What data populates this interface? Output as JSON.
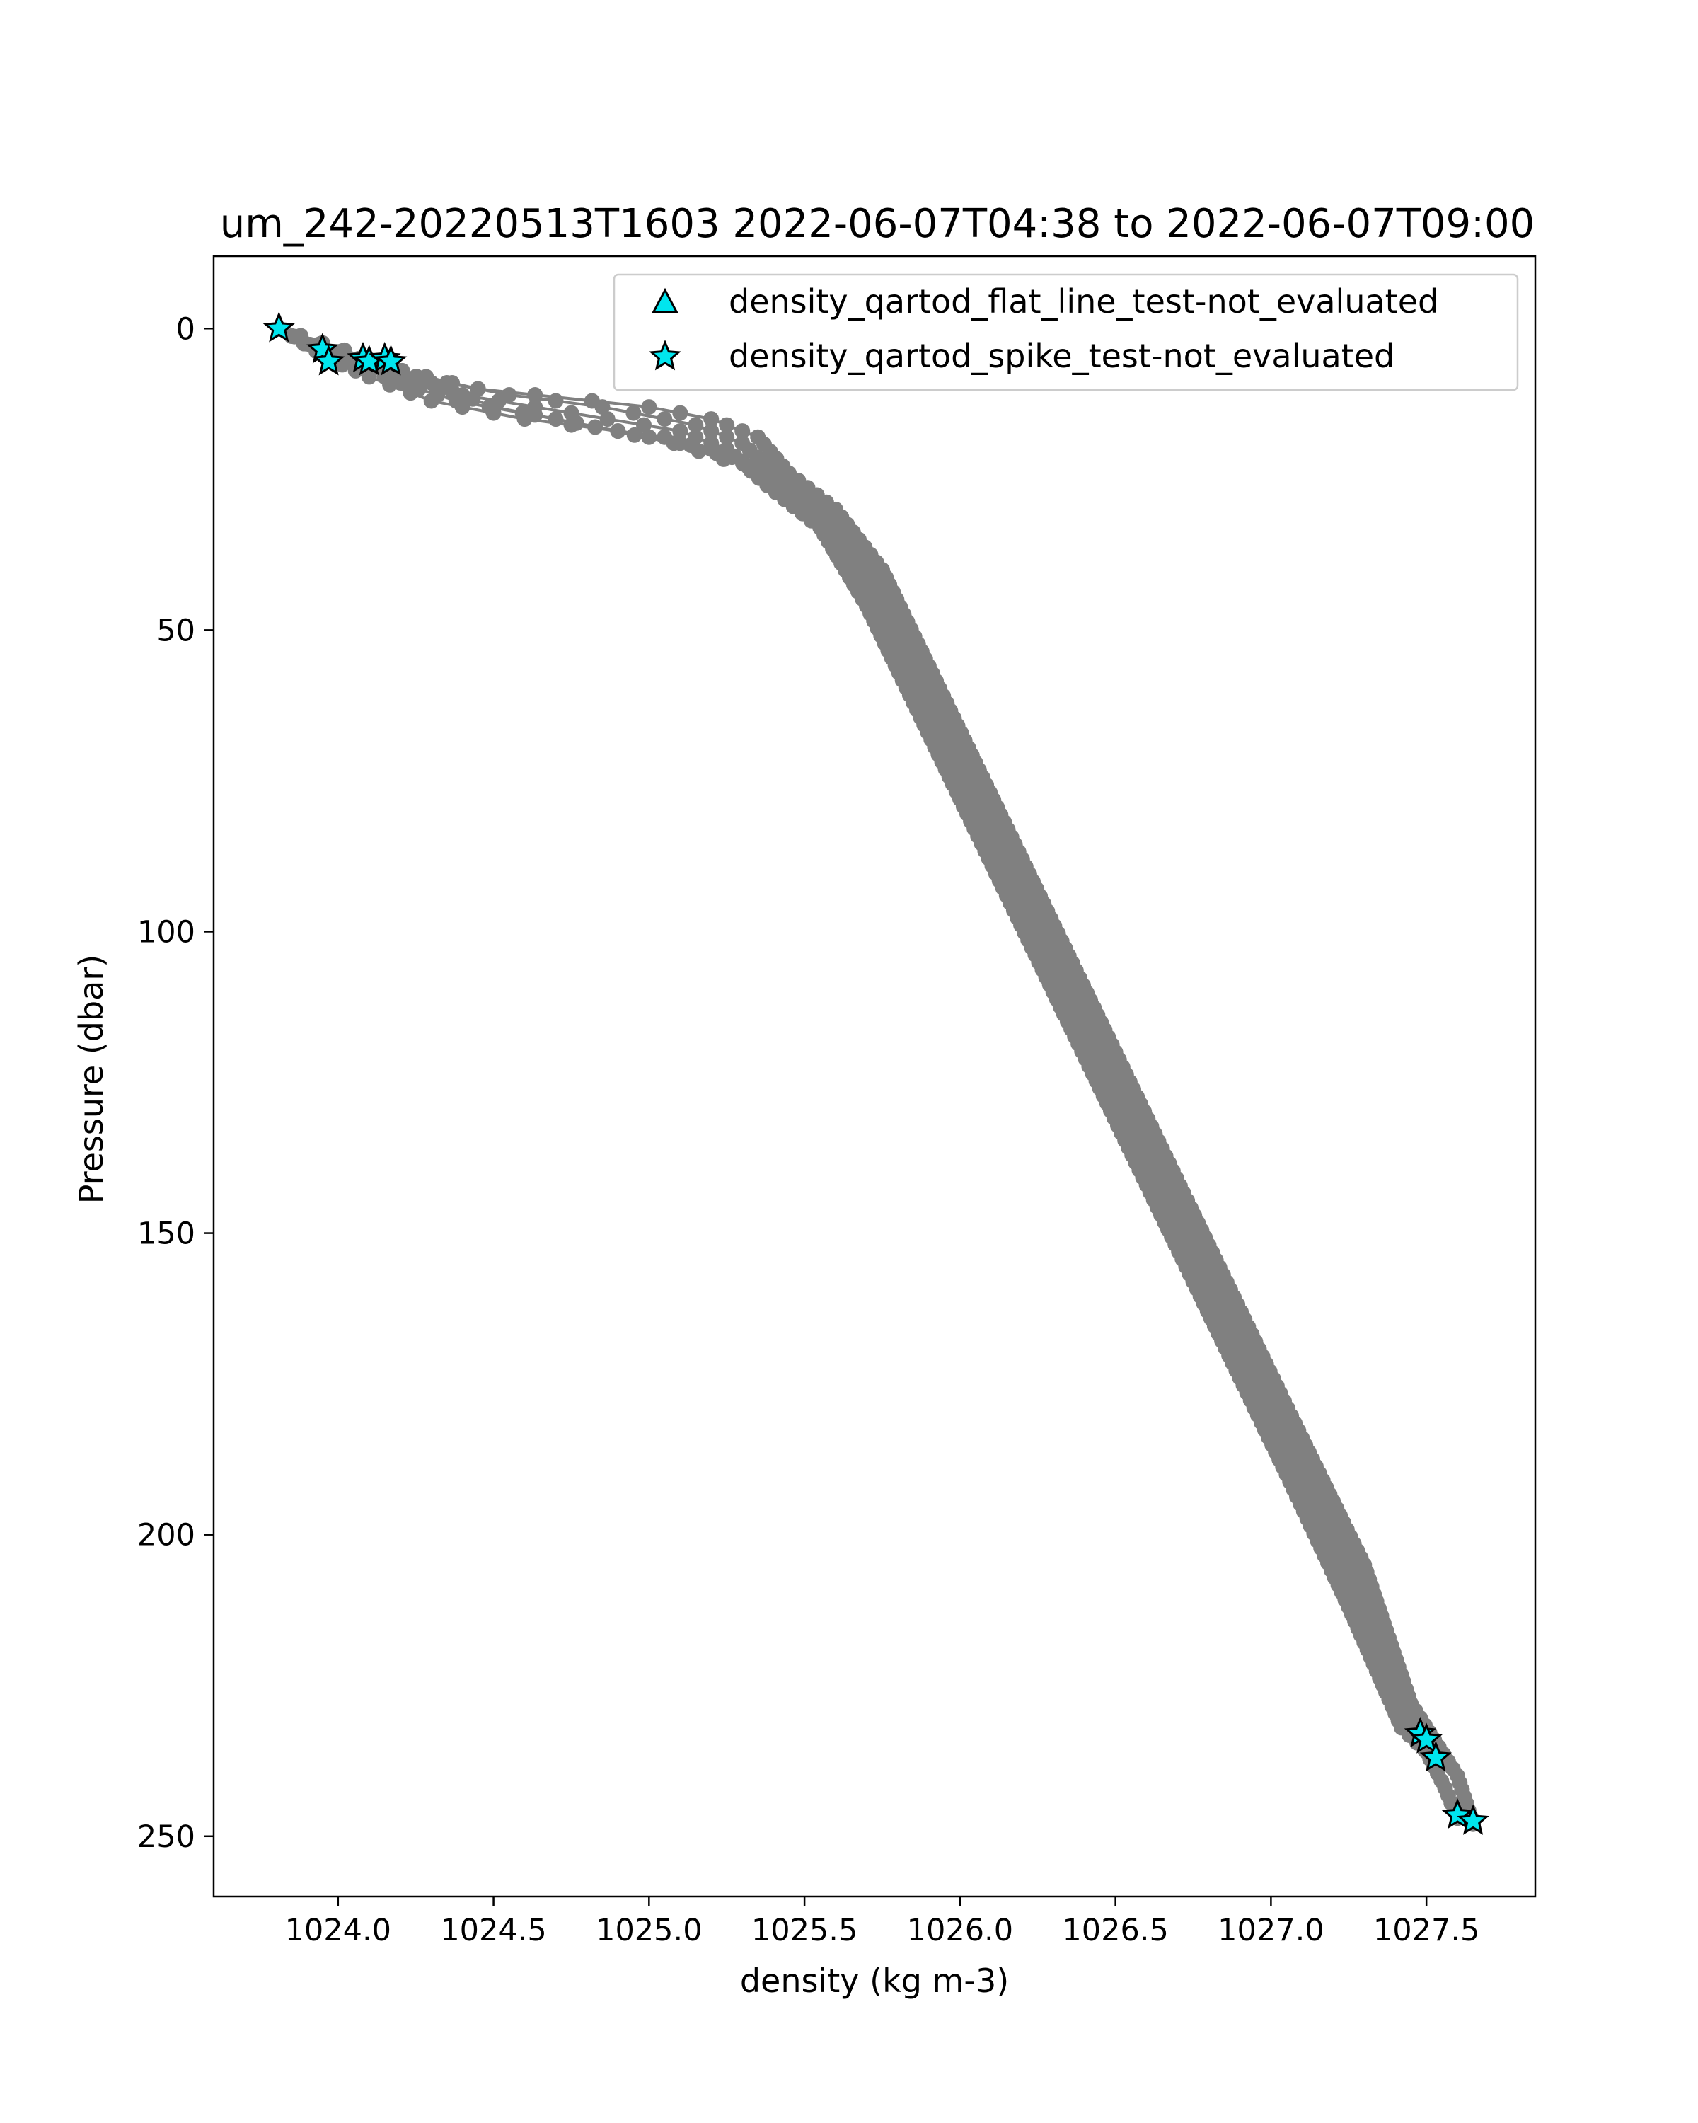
{
  "chart_data": {
    "type": "line",
    "title": "um_242-20220513T1603 2022-06-07T04:38 to 2022-06-07T09:00",
    "xlabel": "density (kg m-3)",
    "ylabel": "Pressure (dbar)",
    "xlim": [
      1023.6,
      1027.85
    ],
    "ylim": [
      260,
      -12
    ],
    "y_inverted": true,
    "grid": false,
    "legend_position": "top-right",
    "x_ticks": [
      1024.0,
      1024.5,
      1025.0,
      1025.5,
      1026.0,
      1026.5,
      1027.0,
      1027.5
    ],
    "x_tick_labels": [
      "1024.0",
      "1024.5",
      "1025.0",
      "1025.5",
      "1026.0",
      "1026.5",
      "1027.0",
      "1027.5"
    ],
    "y_ticks": [
      0,
      50,
      100,
      150,
      200,
      250
    ],
    "y_tick_labels": [
      "0",
      "50",
      "100",
      "150",
      "200",
      "250"
    ],
    "line_color": "#808080",
    "flag_color": "#00e5ee",
    "series": [
      {
        "x": [
          1023.81,
          1024.0,
          1024.2,
          1024.45,
          1025.0,
          1025.2,
          1025.35,
          1025.45,
          1025.6,
          1025.75,
          1025.9,
          1026.05,
          1026.2,
          1026.35,
          1026.5,
          1026.65,
          1026.8,
          1026.95,
          1027.1,
          1027.3,
          1027.45,
          1027.6,
          1027.65
        ],
        "y": [
          0,
          4,
          7,
          10,
          13,
          15,
          18,
          24,
          30,
          40,
          56,
          72,
          88,
          104,
          120,
          136,
          152,
          168,
          184,
          205,
          228,
          240,
          248
        ]
      },
      {
        "x": [
          1023.81,
          1023.98,
          1024.25,
          1024.55,
          1024.85,
          1025.15,
          1025.3,
          1025.42,
          1025.58,
          1025.72,
          1025.88,
          1026.02,
          1026.18,
          1026.33,
          1026.48,
          1026.63,
          1026.78,
          1026.93,
          1027.08,
          1027.28,
          1027.44,
          1027.56,
          1027.6
        ],
        "y": [
          0,
          5,
          8,
          11,
          13,
          16,
          19,
          25,
          32,
          44,
          60,
          76,
          92,
          108,
          124,
          140,
          156,
          172,
          188,
          210,
          230,
          242,
          247
        ]
      },
      {
        "x": [
          1023.81,
          1023.96,
          1024.15,
          1024.4,
          1024.75,
          1025.1,
          1025.25,
          1025.38,
          1025.55,
          1025.7,
          1025.85,
          1026.0,
          1026.15,
          1026.3,
          1026.45,
          1026.6,
          1026.75,
          1026.9,
          1027.05,
          1027.25,
          1027.42,
          1027.52
        ],
        "y": [
          0,
          4,
          8,
          11,
          14,
          17,
          20,
          26,
          33,
          46,
          62,
          78,
          94,
          110,
          126,
          142,
          158,
          174,
          190,
          212,
          232,
          237
        ]
      },
      {
        "x": [
          1023.81,
          1023.97,
          1024.1,
          1024.3,
          1024.6,
          1025.05,
          1025.3,
          1025.5,
          1025.63,
          1025.78,
          1025.93,
          1026.08,
          1026.23,
          1026.38,
          1026.53,
          1026.68,
          1026.83,
          1026.98,
          1027.13,
          1027.32,
          1027.48,
          1027.5
        ],
        "y": [
          0,
          5,
          8,
          12,
          15,
          18,
          22,
          28,
          36,
          50,
          66,
          82,
          98,
          114,
          130,
          146,
          162,
          178,
          194,
          215,
          232,
          234
        ]
      },
      {
        "x": [
          1023.81,
          1024.08,
          1024.2,
          1024.38,
          1024.7,
          1025.08,
          1025.32,
          1025.46,
          1025.6,
          1025.74,
          1025.89,
          1026.04,
          1026.19,
          1026.34,
          1026.49,
          1026.64,
          1026.79,
          1026.94,
          1027.09,
          1027.29,
          1027.46,
          1027.49
        ],
        "y": [
          0,
          5,
          9,
          12,
          15,
          19,
          23,
          27,
          31,
          42,
          58,
          74,
          90,
          106,
          122,
          138,
          154,
          170,
          186,
          208,
          231,
          233
        ]
      },
      {
        "x": [
          1023.81,
          1024.16,
          1024.3,
          1024.5,
          1024.9,
          1025.2,
          1025.4,
          1025.55,
          1025.68,
          1025.82,
          1025.97,
          1026.12,
          1026.27,
          1026.42,
          1026.57,
          1026.72,
          1026.87,
          1027.02,
          1027.17,
          1027.35,
          1027.48,
          1027.53
        ],
        "y": [
          0,
          6,
          9,
          13,
          17,
          20,
          24,
          29,
          38,
          52,
          68,
          84,
          100,
          116,
          132,
          148,
          164,
          180,
          196,
          217,
          233,
          237
        ]
      }
    ],
    "flags": [
      {
        "name": "density_qartod_flat_line_test-not_evaluated",
        "marker": "triangle",
        "x": [],
        "y": []
      },
      {
        "name": "density_qartod_spike_test-not_evaluated",
        "marker": "star",
        "x": [
          1023.81,
          1023.95,
          1023.97,
          1024.08,
          1024.1,
          1024.15,
          1024.17,
          1027.48,
          1027.5,
          1027.53,
          1027.6,
          1027.65
        ],
        "y": [
          0,
          3.5,
          5.5,
          5,
          5.5,
          5,
          5.5,
          233,
          234,
          237,
          246.5,
          247.5
        ]
      }
    ]
  }
}
